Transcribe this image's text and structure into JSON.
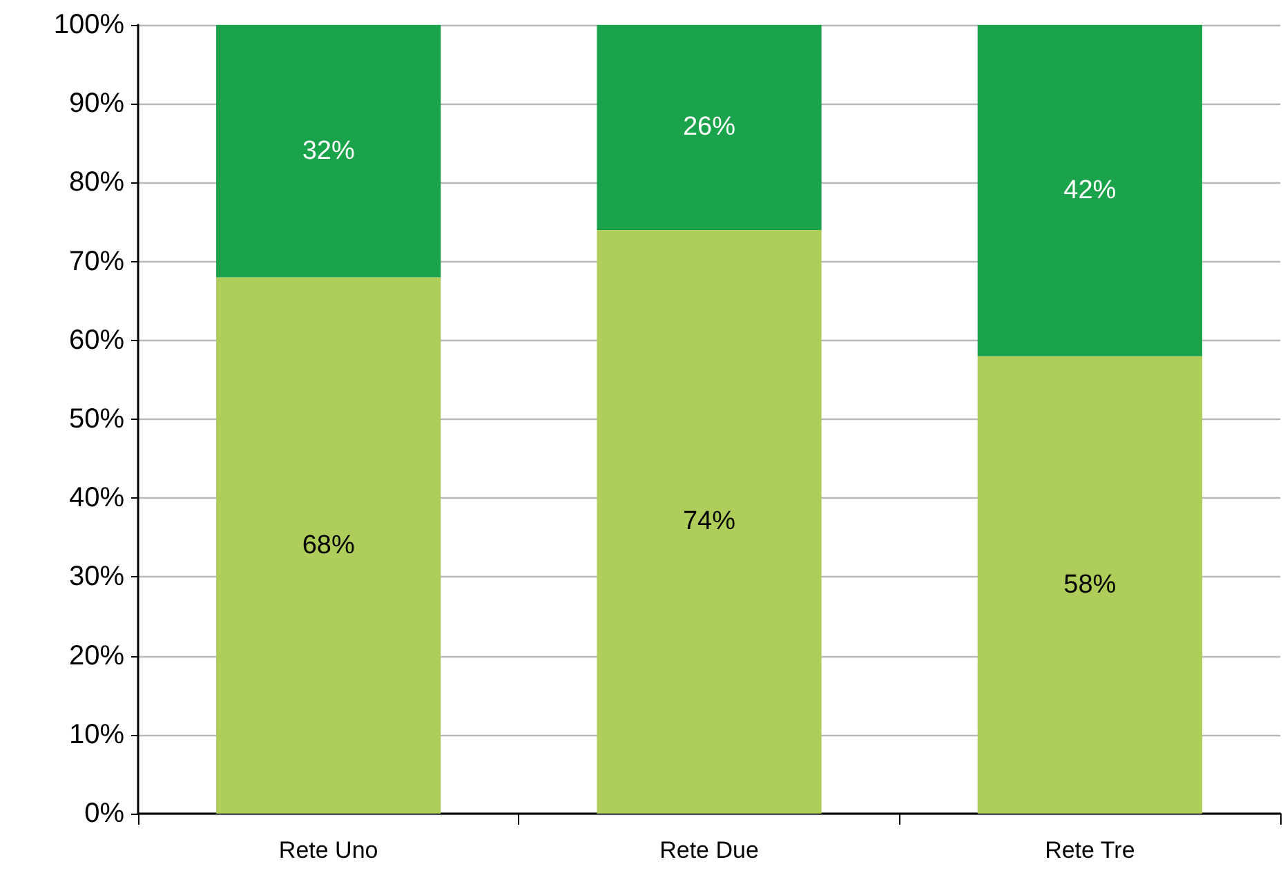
{
  "chart_data": {
    "type": "bar",
    "stacked": true,
    "categories": [
      "Rete Uno",
      "Rete Due",
      "Rete Tre"
    ],
    "series": [
      {
        "color": "#afcd5a",
        "values": [
          68,
          74,
          58
        ],
        "value_labels": [
          "68%",
          "74%",
          "58%"
        ]
      },
      {
        "color": "#1aa34a",
        "values": [
          32,
          26,
          42
        ],
        "value_labels": [
          "32%",
          "26%",
          "42%"
        ]
      }
    ],
    "ylim": [
      0,
      100
    ],
    "yticks": [
      {
        "value": 0,
        "label": "0%"
      },
      {
        "value": 10,
        "label": "10%"
      },
      {
        "value": 20,
        "label": "20%"
      },
      {
        "value": 30,
        "label": "30%"
      },
      {
        "value": 40,
        "label": "40%"
      },
      {
        "value": 50,
        "label": "50%"
      },
      {
        "value": 60,
        "label": "60%"
      },
      {
        "value": 70,
        "label": "70%"
      },
      {
        "value": 80,
        "label": "80%"
      },
      {
        "value": 90,
        "label": "90%"
      },
      {
        "value": 100,
        "label": "100%"
      }
    ],
    "grid": "y"
  }
}
